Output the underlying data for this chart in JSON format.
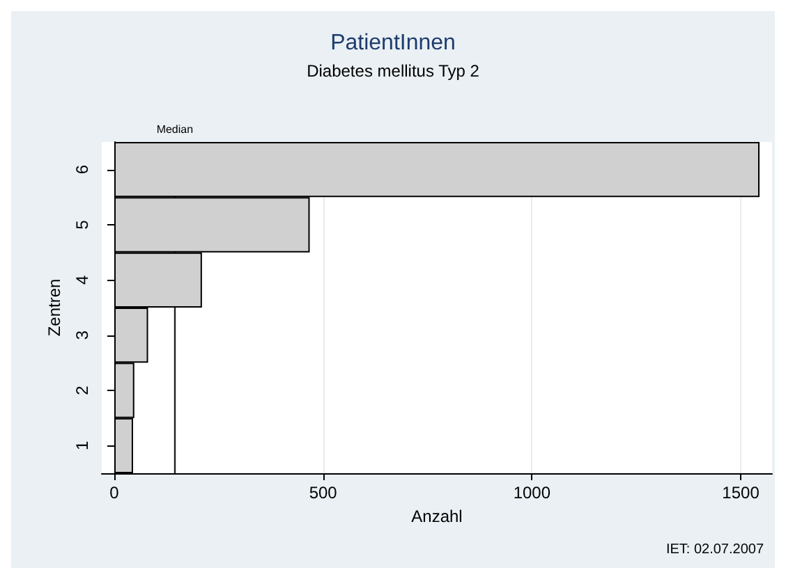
{
  "chart_data": {
    "type": "bar",
    "orientation": "horizontal",
    "title": "PatientInnen",
    "subtitle": "Diabetes mellitus Typ 2",
    "xlabel": "Anzahl",
    "ylabel": "Zentren",
    "categories": [
      "6",
      "5",
      "4",
      "3",
      "2",
      "1"
    ],
    "values": [
      1545,
      468,
      210,
      81,
      48,
      45
    ],
    "color": "#d0d0d0",
    "xlim": [
      -30,
      1575
    ],
    "xticks": [
      0,
      500,
      1000,
      1500
    ],
    "grid": "x",
    "ref_lines": [
      {
        "axis": "x",
        "value": 145,
        "label": "Median",
        "color": "#222222"
      }
    ],
    "annotations": [
      "IET: 02.07.2007"
    ]
  }
}
